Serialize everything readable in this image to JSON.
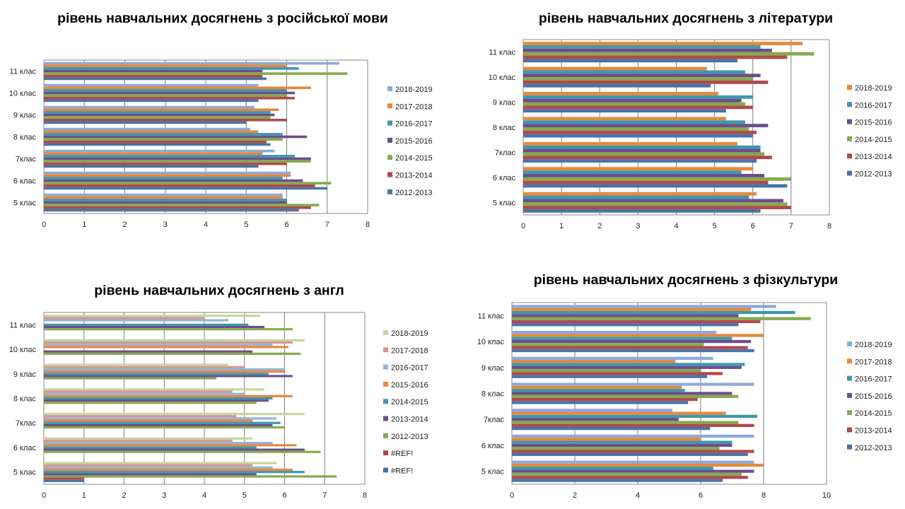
{
  "chart_data": [
    {
      "type": "bar",
      "orientation": "horizontal",
      "title": "рівень навчальних досягнень з російської мови",
      "categories": [
        "5 клас",
        "6 клас",
        "7клас",
        "8 клас",
        "9 клас",
        "10 клас",
        "11 клас"
      ],
      "xlim": [
        0,
        8
      ],
      "xticks": [
        0,
        1,
        2,
        3,
        4,
        5,
        6,
        7,
        8
      ],
      "gridlines": "vertical",
      "legend": "right",
      "series": [
        {
          "name": "2018-2019",
          "color": "#8EA9DB",
          "values": [
            5.9,
            6.1,
            5.7,
            5.1,
            5.2,
            5.3,
            7.3
          ]
        },
        {
          "name": "2017-2018",
          "color": "#E8883A",
          "values": [
            5.9,
            6.1,
            5.4,
            5.3,
            5.8,
            6.6,
            6.0
          ]
        },
        {
          "name": "2016-2017",
          "color": "#3E98AF",
          "values": [
            6.0,
            5.9,
            6.2,
            5.9,
            5.6,
            6.0,
            6.3
          ]
        },
        {
          "name": "2015-2016",
          "color": "#6B4E8E",
          "values": [
            6.0,
            6.4,
            6.6,
            6.5,
            5.7,
            6.2,
            5.4
          ]
        },
        {
          "name": "2014-2015",
          "color": "#86A94E",
          "values": [
            6.8,
            7.1,
            6.6,
            5.9,
            5.6,
            6.0,
            7.5
          ]
        },
        {
          "name": "2013-2014",
          "color": "#B04A4A",
          "values": [
            6.6,
            6.7,
            6.0,
            5.5,
            6.0,
            6.2,
            5.4
          ]
        },
        {
          "name": "2012-2013",
          "color": "#4874A8",
          "values": [
            6.3,
            7.0,
            5.3,
            5.6,
            5.0,
            5.3,
            5.5
          ]
        }
      ]
    },
    {
      "type": "bar",
      "orientation": "horizontal",
      "title": "рівень навчальних досягнень з літератури",
      "categories": [
        "5 клас",
        "6 клас",
        "7клас",
        "8 клас",
        "9 клас",
        "10 клас",
        "11 клас"
      ],
      "xlim": [
        0,
        8
      ],
      "xticks": [
        0,
        1,
        2,
        3,
        4,
        5,
        6,
        7,
        8
      ],
      "gridlines": "vertical",
      "legend": "right",
      "series": [
        {
          "name": "2018-2019",
          "color": "#E8883A",
          "values": [
            6.1,
            6.0,
            5.6,
            5.3,
            5.1,
            4.8,
            7.3
          ]
        },
        {
          "name": "2016-2017",
          "color": "#3E98AF",
          "values": [
            5.9,
            5.7,
            6.2,
            5.8,
            6.0,
            5.8,
            6.2
          ]
        },
        {
          "name": "2015-2016",
          "color": "#6B4E8E",
          "values": [
            6.8,
            6.3,
            6.2,
            6.4,
            5.7,
            6.2,
            6.5
          ]
        },
        {
          "name": "2014-2015",
          "color": "#86A94E",
          "values": [
            6.9,
            7.0,
            6.3,
            5.9,
            5.8,
            6.0,
            7.6
          ]
        },
        {
          "name": "2013-2014",
          "color": "#B04A4A",
          "values": [
            7.0,
            6.4,
            6.5,
            6.1,
            6.0,
            6.4,
            6.9
          ]
        },
        {
          "name": "2012-2013",
          "color": "#4874A8",
          "values": [
            6.2,
            6.9,
            6.1,
            6.0,
            5.3,
            4.9,
            5.6
          ]
        }
      ]
    },
    {
      "type": "bar",
      "orientation": "horizontal",
      "title": "рівень навчальних досягнень з англ",
      "categories": [
        "5 клас",
        "6 клас",
        "7клас",
        "8 клас",
        "9 клас",
        "10 клас",
        "11 клас"
      ],
      "xlim": [
        0,
        8
      ],
      "xticks": [
        0,
        1,
        2,
        3,
        4,
        5,
        6,
        7,
        8
      ],
      "gridlines": "vertical",
      "legend": "right",
      "series": [
        {
          "name": "2018-2019",
          "color": "#C4D79B",
          "values": [
            5.8,
            5.2,
            6.5,
            5.5,
            4.6,
            6.5,
            5.4
          ]
        },
        {
          "name": "2017-2018",
          "color": "#D99694",
          "values": [
            5.2,
            4.7,
            4.8,
            4.7,
            5.0,
            6.2,
            4.0
          ]
        },
        {
          "name": "2016-2017",
          "color": "#95B3D7",
          "values": [
            5.7,
            5.7,
            5.8,
            5.0,
            6.0,
            5.7,
            4.6
          ]
        },
        {
          "name": "2015-2016",
          "color": "#E8883A",
          "values": [
            6.2,
            6.3,
            5.2,
            6.2,
            6.0,
            6.1,
            0
          ]
        },
        {
          "name": "2014-2015",
          "color": "#3E98AF",
          "values": [
            6.5,
            5.3,
            5.9,
            5.7,
            5.6,
            0,
            5.1
          ]
        },
        {
          "name": "2013-2014",
          "color": "#6B4E8E",
          "values": [
            5.3,
            6.5,
            5.7,
            5.6,
            6.2,
            5.2,
            5.5
          ]
        },
        {
          "name": "2012-2013",
          "color": "#86A94E",
          "values": [
            7.3,
            6.9,
            6.0,
            5.3,
            4.3,
            6.4,
            6.2
          ]
        },
        {
          "name": "#REF!",
          "color": "#B04A4A",
          "values": [
            1.0,
            0,
            0,
            0,
            0,
            0,
            0
          ]
        },
        {
          "name": "#REF!",
          "color": "#4874A8",
          "values": [
            1.0,
            0,
            0,
            0,
            0,
            0,
            0
          ]
        }
      ]
    },
    {
      "type": "bar",
      "orientation": "horizontal",
      "title": "рівень навчальних досягнень з фізкультури",
      "categories": [
        "5 клас",
        "6 клас",
        "7клас",
        "8 клас",
        "9 клас",
        "10 клас",
        "11 клас"
      ],
      "xlim": [
        0,
        10
      ],
      "xticks": [
        0,
        2,
        4,
        6,
        8,
        10
      ],
      "gridlines": "vertical",
      "legend": "right",
      "series": [
        {
          "name": "2018-2019",
          "color": "#8EA9DB",
          "values": [
            7.7,
            7.7,
            5.1,
            7.7,
            6.4,
            6.5,
            8.4
          ]
        },
        {
          "name": "2017-2018",
          "color": "#E8883A",
          "values": [
            8.0,
            6.0,
            6.8,
            5.4,
            5.2,
            8.0,
            7.6
          ]
        },
        {
          "name": "2016-2017",
          "color": "#3E98AF",
          "values": [
            6.4,
            7.0,
            7.8,
            5.5,
            7.4,
            7.0,
            9.0
          ]
        },
        {
          "name": "2015-2016",
          "color": "#6B4E8E",
          "values": [
            7.7,
            7.0,
            5.3,
            7.0,
            7.3,
            7.6,
            7.2
          ]
        },
        {
          "name": "2014-2015",
          "color": "#86A94E",
          "values": [
            7.3,
            6.6,
            7.2,
            7.2,
            6.0,
            6.1,
            9.5
          ]
        },
        {
          "name": "2013-2014",
          "color": "#B04A4A",
          "values": [
            7.5,
            7.7,
            7.7,
            5.9,
            6.7,
            7.5,
            7.9
          ]
        },
        {
          "name": "2012-2013",
          "color": "#4874A8",
          "values": [
            6.7,
            7.5,
            6.3,
            5.6,
            6.2,
            7.7,
            7.2
          ]
        }
      ]
    }
  ]
}
